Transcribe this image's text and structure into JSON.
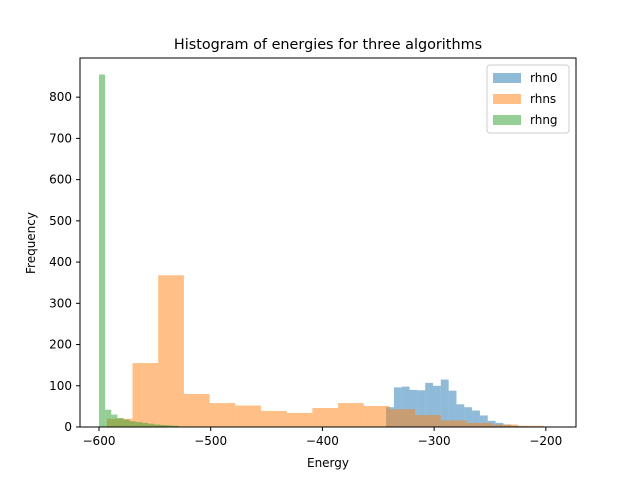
{
  "chart_data": {
    "type": "bar",
    "title": "Histogram of energies for three algorithms",
    "xlabel": "Energy",
    "ylabel": "Frequency",
    "xlim": [
      -617,
      -173
    ],
    "ylim": [
      0,
      895
    ],
    "xticks": [
      -600,
      -500,
      -400,
      -300,
      -200
    ],
    "xtick_labels": [
      "−600",
      "−500",
      "−400",
      "−300",
      "−200"
    ],
    "yticks": [
      0,
      100,
      200,
      300,
      400,
      500,
      600,
      700,
      800
    ],
    "ytick_labels": [
      "0",
      "100",
      "200",
      "300",
      "400",
      "500",
      "600",
      "700",
      "800"
    ],
    "grid": false,
    "legend_position": "top-right",
    "series": [
      {
        "name": "rhn0",
        "color": "#1f77b4",
        "alpha": 0.5,
        "bin_edges": [
          -343,
          -336,
          -329,
          -322,
          -315,
          -308,
          -301,
          -294,
          -287,
          -280,
          -273,
          -266,
          -259,
          -252,
          -245,
          -238,
          -231,
          -224,
          -217
        ],
        "counts": [
          48,
          96,
          98,
          90,
          89,
          107,
          100,
          115,
          88,
          55,
          48,
          40,
          28,
          15,
          10,
          6,
          3,
          2
        ]
      },
      {
        "name": "rhns",
        "color": "#ff7f0e",
        "alpha": 0.5,
        "bin_edges": [
          -593,
          -570,
          -547,
          -524,
          -501,
          -478,
          -455,
          -432,
          -409,
          -386,
          -363,
          -340,
          -317,
          -294,
          -271,
          -248,
          -225,
          -202,
          -179
        ],
        "counts": [
          20,
          155,
          368,
          80,
          58,
          52,
          39,
          34,
          46,
          58,
          51,
          43,
          29,
          16,
          10,
          6,
          3,
          1
        ]
      },
      {
        "name": "rhng",
        "color": "#2ca02c",
        "alpha": 0.5,
        "bin_edges": [
          -600,
          -594.5,
          -589,
          -583.5,
          -578,
          -572.5,
          -567,
          -561.5,
          -556,
          -550.5,
          -545,
          -539.5,
          -534,
          -528.5
        ],
        "counts": [
          855,
          42,
          30,
          22,
          18,
          14,
          12,
          10,
          8,
          6,
          5,
          4,
          3
        ]
      }
    ]
  }
}
